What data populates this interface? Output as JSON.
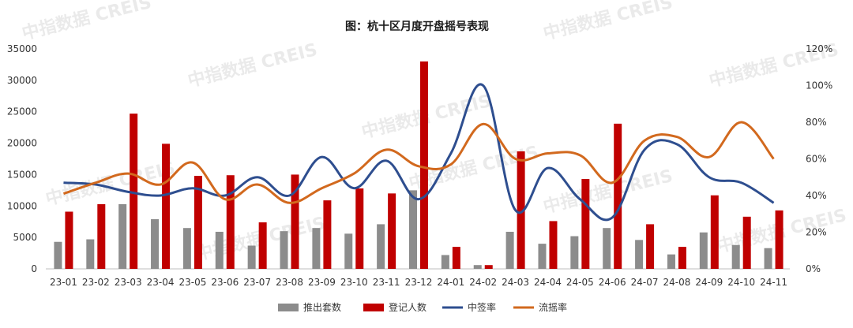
{
  "chart_data": {
    "type": "bar",
    "title": "图：杭十区月度开盘摇号表现",
    "categories": [
      "23-01",
      "23-02",
      "23-03",
      "23-04",
      "23-05",
      "23-06",
      "23-07",
      "23-08",
      "23-09",
      "23-10",
      "23-11",
      "23-12",
      "24-01",
      "24-02",
      "24-03",
      "24-04",
      "24-05",
      "24-06",
      "24-07",
      "24-08",
      "24-09",
      "24-10",
      "24-11"
    ],
    "left_axis": {
      "ylim": [
        0,
        35000
      ],
      "ticks": [
        "0",
        "5000",
        "10000",
        "15000",
        "20000",
        "25000",
        "30000",
        "35000"
      ]
    },
    "right_axis": {
      "ylim": [
        0,
        1.2
      ],
      "ticks": [
        "0%",
        "20%",
        "40%",
        "60%",
        "80%",
        "100%",
        "120%"
      ]
    },
    "grid": false,
    "legend_position": "bottom",
    "series": [
      {
        "name": "推出套数",
        "type": "bar",
        "axis": "left",
        "color": "#8c8c8c",
        "values": [
          4300,
          4700,
          10300,
          7900,
          6500,
          5900,
          3700,
          6000,
          6500,
          5600,
          7100,
          12500,
          2200,
          600,
          5900,
          4000,
          5200,
          6500,
          4600,
          2300,
          5800,
          3800,
          3300
        ]
      },
      {
        "name": "登记人数",
        "type": "bar",
        "axis": "left",
        "color": "#c00000",
        "values": [
          9100,
          10300,
          24700,
          19900,
          14800,
          14900,
          7400,
          15000,
          10900,
          12800,
          12000,
          33000,
          3500,
          600,
          18700,
          7600,
          14300,
          23100,
          7100,
          3500,
          11700,
          8300,
          9300
        ]
      },
      {
        "name": "中签率",
        "type": "line",
        "axis": "right",
        "color": "#2e4e8f",
        "values": [
          0.47,
          0.46,
          0.42,
          0.4,
          0.44,
          0.4,
          0.5,
          0.4,
          0.61,
          0.44,
          0.59,
          0.38,
          0.63,
          1.0,
          0.32,
          0.55,
          0.38,
          0.28,
          0.65,
          0.68,
          0.5,
          0.47,
          0.36
        ]
      },
      {
        "name": "流摇率",
        "type": "line",
        "axis": "right",
        "color": "#d2691e",
        "values": [
          0.41,
          0.47,
          0.52,
          0.46,
          0.58,
          0.38,
          0.46,
          0.36,
          0.44,
          0.52,
          0.65,
          0.56,
          0.57,
          0.79,
          0.6,
          0.63,
          0.62,
          0.47,
          0.7,
          0.72,
          0.61,
          0.8,
          0.6
        ]
      }
    ]
  },
  "watermark": "中指数据 CREIS"
}
